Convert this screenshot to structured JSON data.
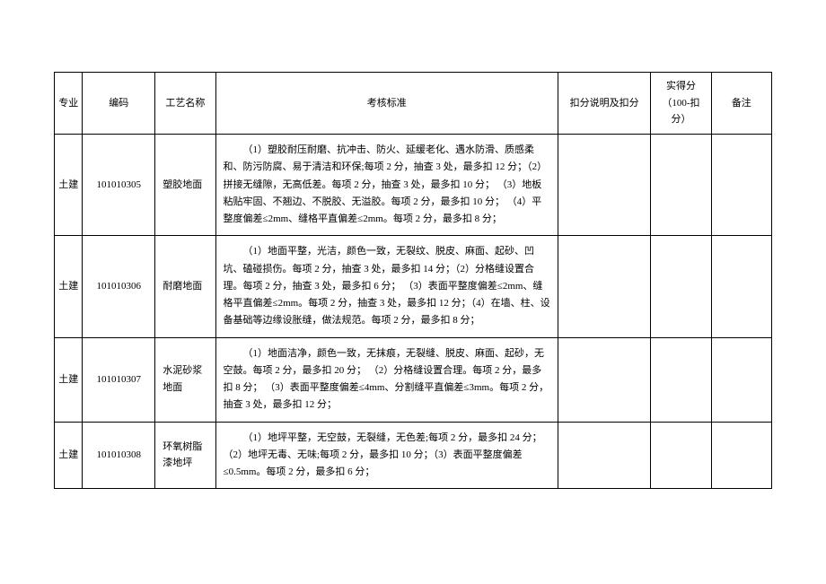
{
  "headers": {
    "major": "专业",
    "code": "编码",
    "name": "工艺名称",
    "standard": "考核标准",
    "deduct": "扣分说明及扣分",
    "score": "实得分（100-扣分）",
    "remark": "备注"
  },
  "rows": [
    {
      "major": "土建",
      "code": "101010305",
      "name": "塑胶地面",
      "standard": "（1）塑胶耐压耐磨、抗冲击、防火、延缓老化、遇水防滑、质感柔和、防污防腐、易于清洁和环保;每项 2 分，抽查 3 处，最多扣 12 分；（2）拼接无缝隙，无高低差。每项 2 分，抽查 3 处，最多扣 10 分； （3）地板粘贴牢固、不翘边、不脱胶、无溢胶。每项 2 分，最多扣 10 分； （4）平整度偏差≤2mm、缝格平直偏差≤2mm。每项 2 分，最多扣 8 分；",
      "deduct": "",
      "score": "",
      "remark": ""
    },
    {
      "major": "土建",
      "code": "101010306",
      "name": "耐磨地面",
      "standard": "（1）地面平整，光洁，颜色一致，无裂纹、脱皮、麻面、起砂、凹坑、磕碰损伤。每项 2 分，抽查 3 处，最多扣 14 分；（2）分格缝设置合理。每项 2 分，抽查 3 处，最多扣 6 分； （3）表面平整度偏差≤2mm、缝格平直偏差≤2mm。每项 2 分，抽查 3 处，最多扣 12 分；（4）在墙、柱、设备基础等边缘设胀缝，做法规范。每项 2 分，最多扣 8 分；",
      "deduct": "",
      "score": "",
      "remark": ""
    },
    {
      "major": "土建",
      "code": "101010307",
      "name": "水泥砂浆地面",
      "standard": "（1）地面洁净，颜色一致，无抹痕，无裂缝、脱皮、麻面、起砂，无空鼓。每项 2 分，最多扣 20 分； （2）分格缝设置合理。每项 2 分，最多扣 8 分；  （3）表面平整度偏差≤4mm、分割缝平直偏差≤3mm。每项 2 分，抽查 3 处，最多扣 12 分；",
      "deduct": "",
      "score": "",
      "remark": ""
    },
    {
      "major": "土建",
      "code": "101010308",
      "name": "环氧树脂漆地坪",
      "standard": "（1）地坪平整，无空鼓，无裂缝，无色差;每项 2 分，最多扣 24 分；（2）地坪无毒、无味;每项 2 分，最多扣 10 分；（3）表面平整度偏差≤0.5mm。每项 2 分，最多扣 6 分；",
      "deduct": "",
      "score": "",
      "remark": ""
    }
  ]
}
